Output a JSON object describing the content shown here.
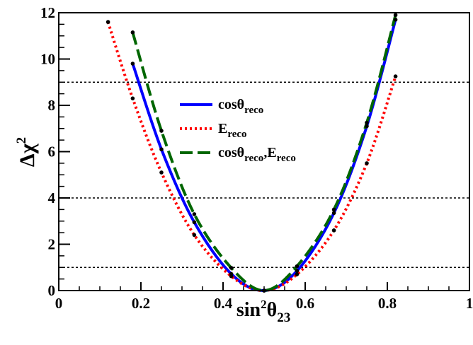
{
  "chart_data": {
    "type": "line",
    "xlabel": {
      "base": "sin",
      "sup": "2",
      "sym": "θ",
      "sub": "23"
    },
    "ylabel": {
      "base": "Δχ",
      "sup": "2"
    },
    "xlim": [
      0,
      1
    ],
    "ylim": [
      0,
      12
    ],
    "x_ticks": [
      {
        "value": 0,
        "label": "0"
      },
      {
        "value": 0.2,
        "label": "0.2"
      },
      {
        "value": 0.4,
        "label": "0.4"
      },
      {
        "value": 0.6,
        "label": "0.6"
      },
      {
        "value": 0.8,
        "label": "0.8"
      },
      {
        "value": 1,
        "label": "1"
      }
    ],
    "y_ticks": [
      {
        "value": 0,
        "label": "0"
      },
      {
        "value": 2,
        "label": "2"
      },
      {
        "value": 4,
        "label": "4"
      },
      {
        "value": 6,
        "label": "6"
      },
      {
        "value": 8,
        "label": "8"
      },
      {
        "value": 10,
        "label": "10"
      },
      {
        "value": 12,
        "label": "12"
      }
    ],
    "reference_lines": [
      1,
      4,
      9
    ],
    "legend_position": "top-center",
    "series": [
      {
        "id": "cos",
        "label_parts": [
          [
            "cosθ",
            "n"
          ],
          [
            "reco",
            "s"
          ]
        ],
        "color": "#0000ff",
        "style": "solid",
        "points": [
          [
            0.18,
            9.8
          ],
          [
            0.25,
            6.1
          ],
          [
            0.33,
            2.95
          ],
          [
            0.42,
            0.72
          ],
          [
            0.5,
            0.0
          ],
          [
            0.58,
            0.85
          ],
          [
            0.67,
            3.35
          ],
          [
            0.75,
            7.1
          ],
          [
            0.82,
            11.7
          ]
        ]
      },
      {
        "id": "e",
        "label_parts": [
          [
            "E",
            "n"
          ],
          [
            "reco",
            "s"
          ]
        ],
        "color": "#ff0000",
        "style": "dotted",
        "points": [
          [
            0.12,
            11.6
          ],
          [
            0.18,
            8.3
          ],
          [
            0.25,
            5.1
          ],
          [
            0.33,
            2.4
          ],
          [
            0.42,
            0.62
          ],
          [
            0.5,
            0.0
          ],
          [
            0.58,
            0.7
          ],
          [
            0.67,
            2.6
          ],
          [
            0.75,
            5.5
          ],
          [
            0.82,
            9.25
          ]
        ]
      },
      {
        "id": "combined",
        "label_parts": [
          [
            "cosθ",
            "n"
          ],
          [
            "reco",
            "s"
          ],
          [
            ",E",
            "n"
          ],
          [
            "reco",
            "s"
          ]
        ],
        "color": "#006600",
        "style": "dashed",
        "points": [
          [
            0.18,
            11.15
          ],
          [
            0.25,
            6.9
          ],
          [
            0.33,
            3.3
          ],
          [
            0.42,
            0.98
          ],
          [
            0.5,
            0.0
          ],
          [
            0.58,
            1.05
          ],
          [
            0.67,
            3.5
          ],
          [
            0.75,
            7.25
          ],
          [
            0.82,
            11.9
          ]
        ]
      }
    ]
  }
}
